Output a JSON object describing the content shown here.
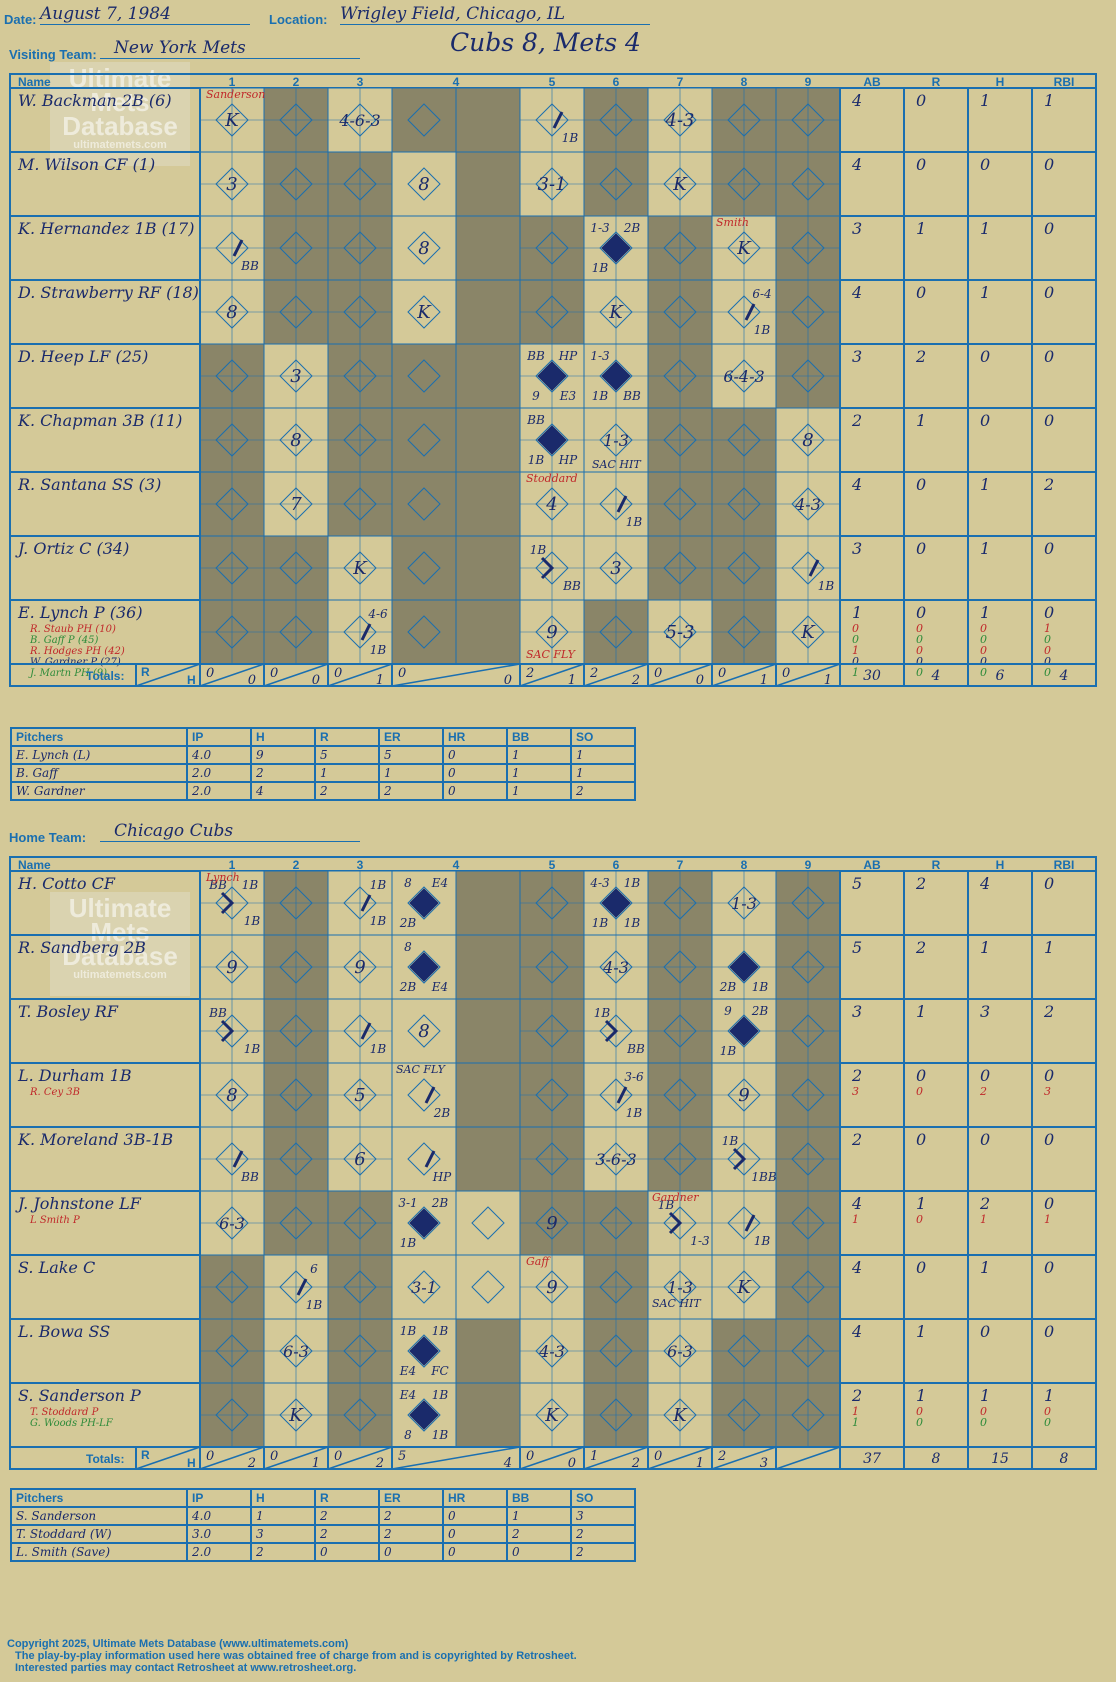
{
  "header": {
    "date_label": "Date:",
    "date": "August 7, 1984",
    "location_label": "Location:",
    "location": "Wrigley Field, Chicago, IL",
    "visiting_label": "Visiting Team:",
    "visiting_team": "New York Mets",
    "score_title": "Cubs 8, Mets 4",
    "home_label": "Home Team:",
    "home_team": "Chicago Cubs"
  },
  "grid_headers": {
    "name": "Name",
    "innings": [
      "1",
      "2",
      "3",
      "4",
      "5",
      "6",
      "7",
      "8",
      "9"
    ],
    "stats": [
      "AB",
      "R",
      "H",
      "RBI"
    ],
    "totals": "Totals:",
    "r": "R",
    "h": "H"
  },
  "logo": {
    "line1": "Ultimate",
    "line2": "Mets",
    "line3": "Database",
    "sub": "ultimatemets.com"
  },
  "visitors": {
    "players": [
      {
        "name": "W. Backman 2B (6)",
        "stats": [
          "4",
          "0",
          "1",
          "1"
        ],
        "subs": []
      },
      {
        "name": "M. Wilson CF (1)",
        "stats": [
          "4",
          "0",
          "0",
          "0"
        ],
        "subs": []
      },
      {
        "name": "K. Hernandez 1B (17)",
        "stats": [
          "3",
          "1",
          "1",
          "0"
        ],
        "subs": []
      },
      {
        "name": "D. Strawberry RF (18)",
        "stats": [
          "4",
          "0",
          "1",
          "0"
        ],
        "subs": []
      },
      {
        "name": "D. Heep LF (25)",
        "stats": [
          "3",
          "2",
          "0",
          "0"
        ],
        "subs": []
      },
      {
        "name": "K. Chapman 3B (11)",
        "stats": [
          "2",
          "1",
          "0",
          "0"
        ],
        "subs": []
      },
      {
        "name": "R. Santana SS (3)",
        "stats": [
          "4",
          "0",
          "1",
          "2"
        ],
        "subs": []
      },
      {
        "name": "J. Ortiz C (34)",
        "stats": [
          "3",
          "0",
          "1",
          "0"
        ],
        "subs": []
      },
      {
        "name": "E. Lynch P (36)",
        "stats": [
          "1",
          "0",
          "1",
          "0"
        ],
        "subs": [
          {
            "name": "R. Staub PH (10)",
            "color": "#c0282a",
            "stats": [
              "0",
              "0",
              "0",
              "1"
            ]
          },
          {
            "name": "B. Gaff P (45)",
            "color": "#2e8b3a",
            "stats": [
              "0",
              "0",
              "0",
              "0"
            ]
          },
          {
            "name": "R. Hodges PH (42)",
            "color": "#c0282a",
            "stats": [
              "1",
              "0",
              "0",
              "0"
            ]
          },
          {
            "name": "W. Gardner P (27)",
            "color": "#1a2a6b",
            "stats": [
              "0",
              "0",
              "0",
              "0"
            ]
          },
          {
            "name": "J. Martn PH (9)",
            "color": "#2e8b3a",
            "stats": [
              "1",
              "0",
              "0",
              "0"
            ]
          }
        ]
      }
    ],
    "totals": {
      "innings": [
        [
          "0",
          "0"
        ],
        [
          "0",
          "0"
        ],
        [
          "0",
          "1"
        ],
        [
          "0",
          "0"
        ],
        [
          "2",
          "1"
        ],
        [
          "2",
          "2"
        ],
        [
          "0",
          "0"
        ],
        [
          "0",
          "1"
        ],
        [
          "0",
          "1"
        ]
      ],
      "stats": [
        "30",
        "4",
        "6",
        "4"
      ]
    },
    "pitchers_header": [
      "Pitchers",
      "IP",
      "H",
      "R",
      "ER",
      "HR",
      "BB",
      "SO"
    ],
    "pitchers": [
      [
        "E. Lynch (L)",
        "4.0",
        "9",
        "5",
        "5",
        "0",
        "1",
        "1"
      ],
      [
        "B. Gaff",
        "2.0",
        "2",
        "1",
        "1",
        "0",
        "1",
        "1"
      ],
      [
        "W. Gardner",
        "2.0",
        "4",
        "2",
        "2",
        "0",
        "1",
        "2"
      ]
    ]
  },
  "home": {
    "players": [
      {
        "name": "H. Cotto CF",
        "stats": [
          "5",
          "2",
          "4",
          "0"
        ],
        "subs": []
      },
      {
        "name": "R. Sandberg 2B",
        "stats": [
          "5",
          "2",
          "1",
          "1"
        ],
        "subs": []
      },
      {
        "name": "T. Bosley RF",
        "stats": [
          "3",
          "1",
          "3",
          "2"
        ],
        "subs": []
      },
      {
        "name": "L. Durham 1B",
        "stats": [
          "2",
          "0",
          "0",
          "0"
        ],
        "subs": [
          {
            "name": "R. Cey 3B",
            "color": "#c0282a",
            "stats": [
              "3",
              "0",
              "2",
              "3"
            ]
          }
        ]
      },
      {
        "name": "K. Moreland 3B-1B",
        "stats": [
          "2",
          "0",
          "0",
          "0"
        ],
        "subs": []
      },
      {
        "name": "J. Johnstone LF",
        "stats": [
          "4",
          "1",
          "2",
          "0"
        ],
        "subs": [
          {
            "name": "L Smith P",
            "color": "#c0282a",
            "stats": [
              "1",
              "0",
              "1",
              "1"
            ]
          }
        ]
      },
      {
        "name": "S. Lake C",
        "stats": [
          "4",
          "0",
          "1",
          "0"
        ],
        "subs": []
      },
      {
        "name": "L. Bowa SS",
        "stats": [
          "4",
          "1",
          "0",
          "0"
        ],
        "subs": []
      },
      {
        "name": "S. Sanderson P",
        "stats": [
          "2",
          "1",
          "1",
          "1"
        ],
        "subs": [
          {
            "name": "T. Stoddard P",
            "color": "#c0282a",
            "stats": [
              "1",
              "0",
              "0",
              "0"
            ]
          },
          {
            "name": "G. Woods PH-LF",
            "color": "#2e8b3a",
            "stats": [
              "1",
              "0",
              "0",
              "0"
            ]
          }
        ]
      }
    ],
    "totals": {
      "innings": [
        [
          "0",
          "2"
        ],
        [
          "0",
          "1"
        ],
        [
          "0",
          "2"
        ],
        [
          "5",
          "4"
        ],
        [
          "0",
          "0"
        ],
        [
          "1",
          "2"
        ],
        [
          "0",
          "1"
        ],
        [
          "2",
          "3"
        ],
        [
          "",
          ""
        ]
      ],
      "stats": [
        "37",
        "8",
        "15",
        "8"
      ]
    },
    "pitchers_header": [
      "Pitchers",
      "IP",
      "H",
      "R",
      "ER",
      "HR",
      "BB",
      "SO"
    ],
    "pitchers": [
      [
        "S. Sanderson",
        "4.0",
        "1",
        "2",
        "2",
        "0",
        "1",
        "3"
      ],
      [
        "T. Stoddard (W)",
        "3.0",
        "3",
        "2",
        "2",
        "0",
        "2",
        "2"
      ],
      [
        "L. Smith (Save)",
        "2.0",
        "2",
        "0",
        "0",
        "0",
        "0",
        "2"
      ]
    ]
  },
  "plays": {
    "visitors": [
      [
        [
          "0",
          "K"
        ],
        null,
        [
          "1",
          "4-6-3"
        ],
        null,
        [
          "b",
          "1B"
        ],
        null,
        [
          "2",
          "4-3"
        ],
        null,
        null
      ],
      [
        [
          "0",
          "3"
        ],
        null,
        null,
        [
          "0",
          "8"
        ],
        [
          "2",
          "3-1"
        ],
        null,
        [
          "0",
          "K"
        ],
        null,
        null
      ],
      [
        [
          "b",
          "BB"
        ],
        null,
        null,
        [
          "0",
          "8"
        ],
        null,
        [
          "r",
          "1-3",
          "2B",
          "1B",
          ""
        ],
        null,
        [
          "0",
          "K"
        ],
        null
      ],
      [
        [
          "0",
          "8"
        ],
        null,
        null,
        [
          "0",
          "K"
        ],
        null,
        [
          "0",
          "K"
        ],
        null,
        [
          "b",
          "1B",
          "6-4"
        ],
        null
      ],
      [
        null,
        [
          "0",
          "3"
        ],
        null,
        null,
        [
          "r",
          "BB",
          "HP",
          "9",
          "E3"
        ],
        [
          "r",
          "1-3",
          "",
          "1B",
          "BB"
        ],
        null,
        [
          "1",
          "6-4-3"
        ],
        null
      ],
      [
        null,
        [
          "0",
          "8"
        ],
        null,
        null,
        [
          "r",
          "BB",
          "",
          "1B",
          "HP"
        ],
        [
          "1",
          "1-3"
        ],
        null,
        null,
        [
          "0",
          "8"
        ]
      ],
      [
        null,
        [
          "0",
          "7"
        ],
        null,
        null,
        [
          "0",
          "4"
        ],
        [
          "b",
          "1B"
        ],
        null,
        null,
        [
          "1",
          "4-3"
        ]
      ],
      [
        null,
        null,
        [
          "0",
          "K"
        ],
        null,
        [
          "bb",
          "1B",
          "BB"
        ],
        [
          "0",
          "3"
        ],
        null,
        null,
        [
          "b",
          "1B"
        ]
      ],
      [
        null,
        null,
        [
          "b",
          "1B",
          "4-6"
        ],
        null,
        [
          "0",
          "9"
        ],
        null,
        [
          "2",
          "5-3"
        ],
        null,
        [
          "0",
          "K"
        ]
      ]
    ],
    "home": [
      [
        [
          "bb",
          "BB",
          "1B",
          "1B"
        ],
        null,
        [
          "b",
          "1B",
          "1B"
        ],
        [
          "r",
          "8",
          "E4",
          "2B",
          ""
        ],
        null,
        [
          "r",
          "4-3",
          "1B",
          "1B",
          "1B"
        ],
        null,
        [
          "1",
          "1-3"
        ],
        null
      ],
      [
        [
          "0",
          "9"
        ],
        null,
        [
          "0",
          "9"
        ],
        [
          "r",
          "8",
          "",
          "2B",
          "E4"
        ],
        null,
        [
          "1",
          "4-3"
        ],
        null,
        [
          "r",
          "",
          "",
          "2B",
          "1B"
        ],
        null
      ],
      [
        [
          "bb",
          "BB",
          "1B"
        ],
        null,
        [
          "b",
          "1B"
        ],
        [
          "0",
          "8"
        ],
        null,
        [
          "bb",
          "1B",
          "BB"
        ],
        null,
        [
          "r",
          "9",
          "2B",
          "1B",
          ""
        ],
        null
      ],
      [
        [
          "0",
          "8"
        ],
        null,
        [
          "0",
          "5"
        ],
        [
          "b",
          "2B"
        ],
        null,
        [
          "b",
          "1B",
          "3-6"
        ],
        null,
        [
          "0",
          "9"
        ],
        null
      ],
      [
        [
          "b",
          "BB"
        ],
        null,
        [
          "0",
          "6"
        ],
        [
          "b",
          "HP"
        ],
        null,
        [
          "1",
          "3-6-3"
        ],
        null,
        [
          "bb",
          "1B",
          "1BB"
        ],
        null
      ],
      [
        [
          "1",
          "6-3"
        ],
        null,
        null,
        [
          "r",
          "3-1",
          "2B",
          "1B",
          ""
        ],
        [
          "0",
          "9"
        ],
        null,
        [
          "bb",
          "1B",
          "1-3"
        ],
        [
          "b",
          "1B"
        ],
        null
      ],
      [
        null,
        [
          "b",
          "1B",
          "6"
        ],
        null,
        [
          "1",
          "3-1"
        ],
        [
          "0",
          "9"
        ],
        null,
        [
          "1",
          "1-3"
        ],
        [
          "0",
          "K"
        ],
        null
      ],
      [
        null,
        [
          "1",
          "6-3"
        ],
        null,
        [
          "r",
          "1B",
          "1B",
          "E4",
          "FC"
        ],
        [
          "1",
          "4-3"
        ],
        null,
        [
          "1",
          "6-3"
        ],
        null,
        null
      ],
      [
        null,
        [
          "0",
          "K"
        ],
        null,
        [
          "r",
          "E4",
          "1B",
          "8",
          "1B"
        ],
        [
          "0",
          "K"
        ],
        null,
        [
          "0",
          "K"
        ],
        null,
        null
      ]
    ],
    "annotations": {
      "sanderson": "Sanderson",
      "smith": "Smith",
      "stoddard": "Stoddard",
      "lynch": "Lynch",
      "gardner": "Gardner",
      "gaff": "Gaff",
      "sac_hit": "SAC HIT",
      "sac_fly": "SAC FLY"
    }
  },
  "footer": {
    "line1": "Copyright 2025, Ultimate Mets Database (www.ultimatemets.com)",
    "line2": "The play-by-play information used here was obtained free of charge from and is copyrighted by Retrosheet.",
    "line3": "Interested parties may contact Retrosheet at www.retrosheet.org."
  },
  "colors": {
    "background": "#d4c998",
    "grid": "#1a6fb0",
    "shade": "#8a8568",
    "ink": "#1a2a6b",
    "red": "#c0282a",
    "green": "#2e8b3a"
  }
}
